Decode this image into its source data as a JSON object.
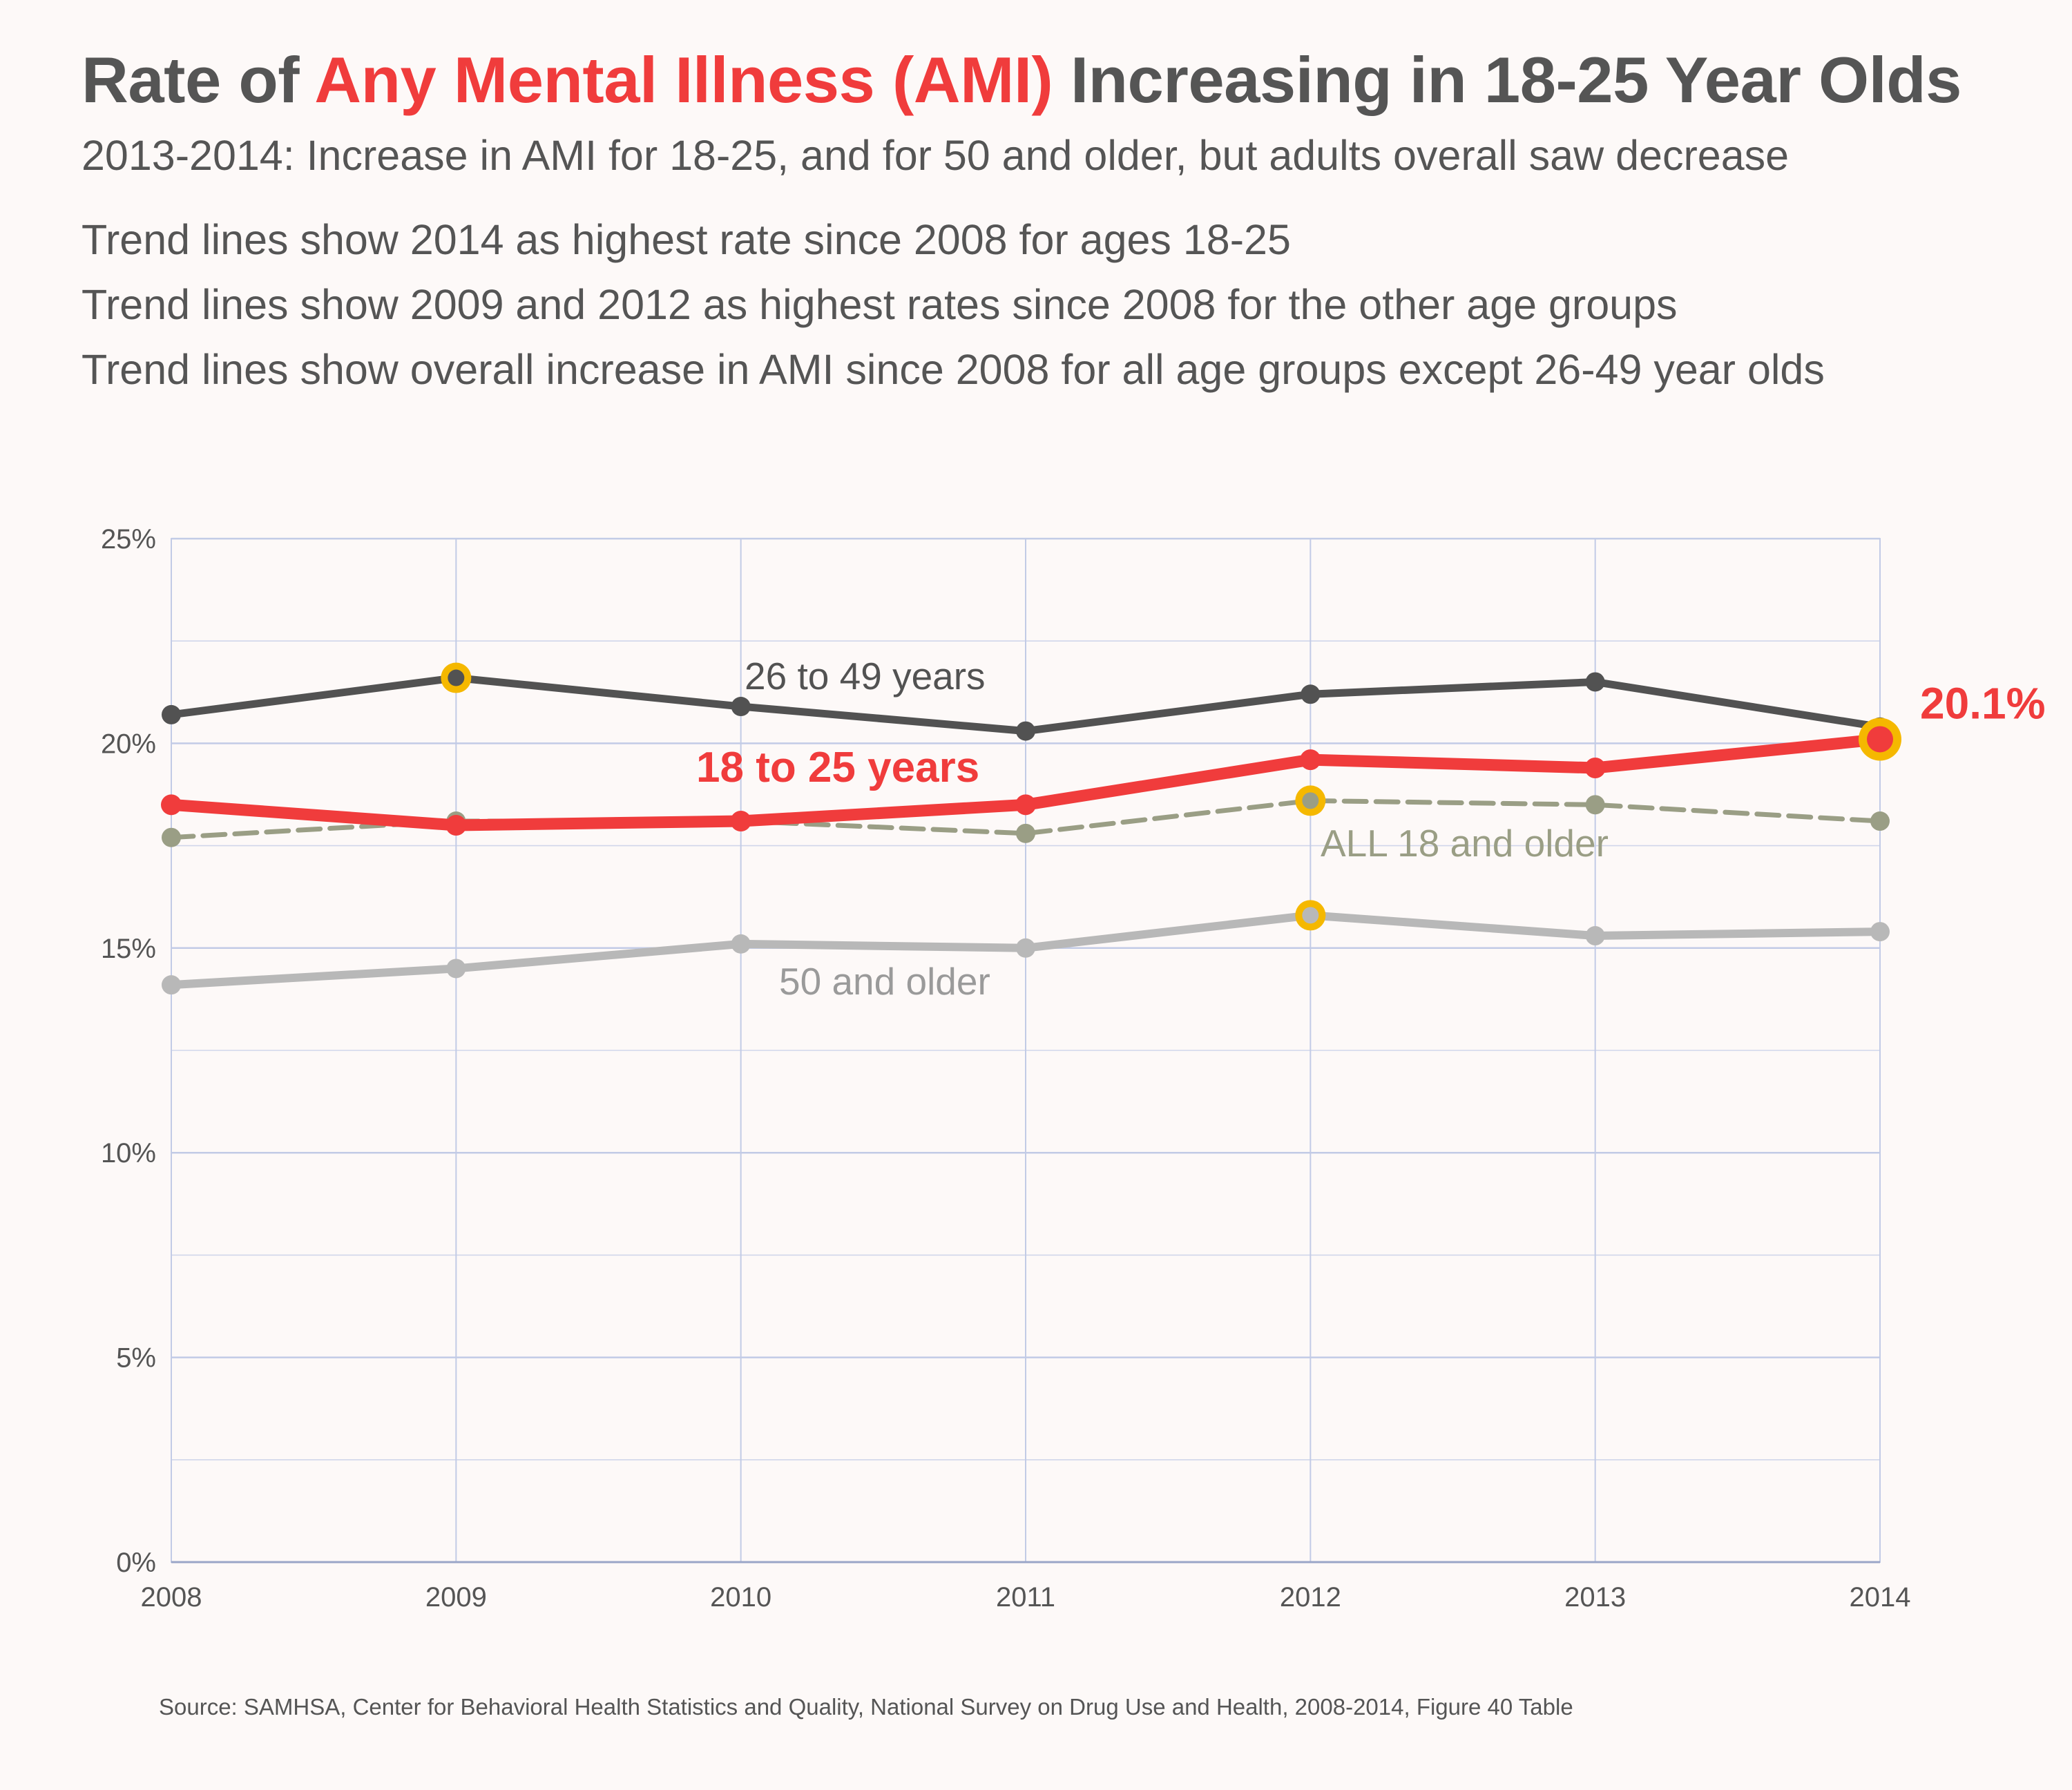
{
  "title": {
    "prefix": "Rate of ",
    "highlight": "Any Mental Illness (AMI)",
    "suffix": " Increasing in 18-25 Year Olds"
  },
  "subtitle": "2013-2014: Increase in AMI for 18-25, and for 50 and older, but adults overall saw decrease",
  "notes": [
    "Trend lines show 2014 as highest rate since 2008 for ages 18-25",
    "Trend lines show 2009 and 2012 as highest rates since 2008 for the other age groups",
    "Trend lines show overall increase in AMI since 2008 for all age groups except 26-49 year olds"
  ],
  "source": "Source: SAMHSA, Center for Behavioral Health Statistics and Quality, National Survey on Drug Use and Health, 2008-2014,  Figure 40 Table",
  "colors": {
    "age_18_25": "#f03c3c",
    "age_26_49": "#525252",
    "all_18_older": "#9a9e85",
    "age_50_older": "#b8b8b8",
    "highlight_ring": "#f5b800",
    "grid": "#c2cbe6",
    "text": "#555555"
  },
  "chart_data": {
    "type": "line",
    "x": [
      2008,
      2009,
      2010,
      2011,
      2012,
      2013,
      2014
    ],
    "x_tick_labels": [
      "2008",
      "2009",
      "2010",
      "2011",
      "2012",
      "2013",
      "2014"
    ],
    "ylim": [
      0,
      25
    ],
    "y_ticks": [
      0,
      5,
      10,
      15,
      20,
      25
    ],
    "y_tick_labels": [
      "0%",
      "5%",
      "10%",
      "15%",
      "20%",
      "25%"
    ],
    "grid": true,
    "series": [
      {
        "name": "26 to 49 years",
        "key": "age_26_49",
        "values": [
          20.7,
          21.6,
          20.9,
          20.3,
          21.2,
          21.5,
          20.4
        ],
        "highlight_years": [
          2009
        ]
      },
      {
        "name": "ALL 18 and older",
        "key": "all_18_older",
        "dashed": true,
        "values": [
          17.7,
          18.1,
          18.1,
          17.8,
          18.6,
          18.5,
          18.1
        ],
        "highlight_years": [
          2012
        ]
      },
      {
        "name": "18 to 25 years",
        "key": "age_18_25",
        "values": [
          18.5,
          18.0,
          18.1,
          18.5,
          19.6,
          19.4,
          20.1
        ],
        "highlight_years": [
          2014
        ]
      },
      {
        "name": "50 and older",
        "key": "age_50_older",
        "values": [
          14.1,
          14.5,
          15.1,
          15.0,
          15.8,
          15.3,
          15.4
        ],
        "highlight_years": [
          2012
        ]
      }
    ],
    "annotations": [
      {
        "text": "20.1%",
        "series": "age_18_25",
        "year": 2014
      }
    ]
  }
}
